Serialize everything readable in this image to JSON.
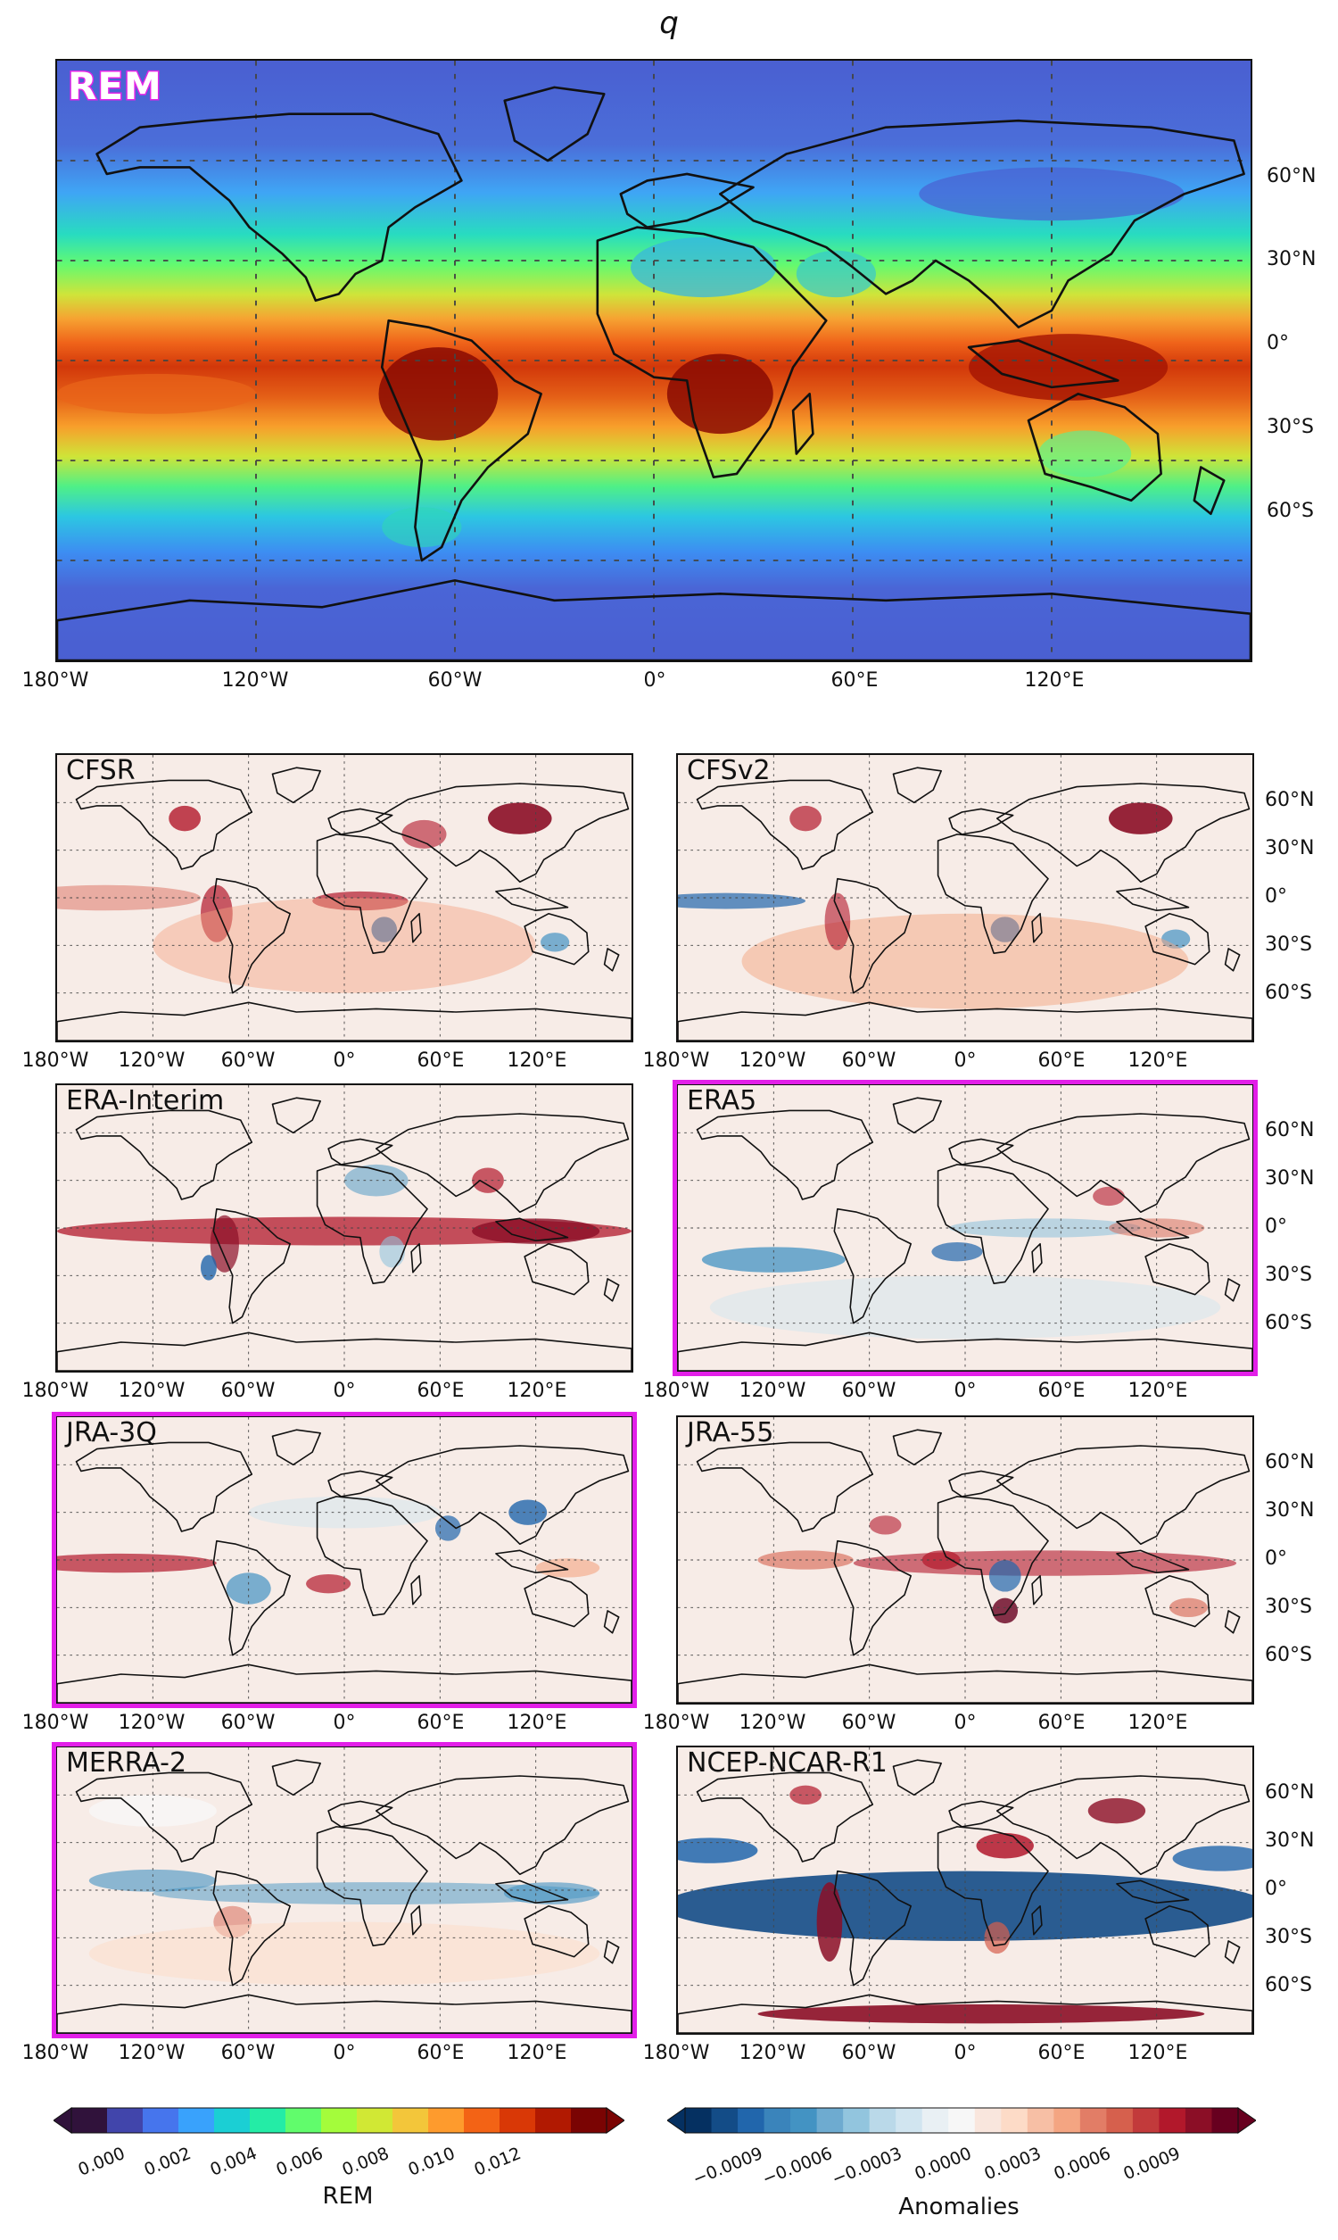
{
  "figure": {
    "title": "q"
  },
  "main_map": {
    "label": "REM"
  },
  "panels": [
    {
      "label": "CFSR",
      "highlighted": false,
      "style": "cfsr"
    },
    {
      "label": "CFSv2",
      "highlighted": false,
      "style": "cfsv2"
    },
    {
      "label": "ERA-Interim",
      "highlighted": false,
      "style": "erai"
    },
    {
      "label": "ERA5",
      "highlighted": true,
      "style": "era5"
    },
    {
      "label": "JRA-3Q",
      "highlighted": true,
      "style": "jra3q"
    },
    {
      "label": "JRA-55",
      "highlighted": false,
      "style": "jra55"
    },
    {
      "label": "MERRA-2",
      "highlighted": true,
      "style": "merra2"
    },
    {
      "label": "NCEP-NCAR-R1",
      "highlighted": false,
      "style": "ncep"
    }
  ],
  "axes": {
    "lon_ticks": [
      "180°W",
      "120°W",
      "60°W",
      "0°",
      "60°E",
      "120°E"
    ],
    "lat_ticks": [
      "60°N",
      "30°N",
      "0°",
      "30°S",
      "60°S"
    ]
  },
  "colorbars": {
    "rem": {
      "label": "REM",
      "ticks": [
        "0.000",
        "0.002",
        "0.004",
        "0.006",
        "0.008",
        "0.010",
        "0.012"
      ],
      "colors": [
        "#30123b",
        "#4145ab",
        "#4675ed",
        "#39a2fc",
        "#1bcfd4",
        "#24eca6",
        "#61fc6c",
        "#a4fc3b",
        "#d1e834",
        "#f3c63a",
        "#fe9b2d",
        "#f36315",
        "#d93806",
        "#b11901",
        "#7a0403"
      ]
    },
    "anom": {
      "label": "Anomalies",
      "ticks": [
        "−0.0009",
        "−0.0006",
        "−0.0003",
        "0.0000",
        "0.0003",
        "0.0006",
        "0.0009"
      ],
      "colors": [
        "#053061",
        "#134c87",
        "#2166ac",
        "#3a84bb",
        "#4393c3",
        "#6eabd0",
        "#92c5de",
        "#bad9e9",
        "#d1e5f0",
        "#e9f0f4",
        "#f7f7f7",
        "#f9e6dd",
        "#fddbc7",
        "#f7bfa5",
        "#f4a582",
        "#e27d66",
        "#d6604d",
        "#c23a3b",
        "#b2182b",
        "#8b0e26",
        "#67001f"
      ]
    }
  }
}
